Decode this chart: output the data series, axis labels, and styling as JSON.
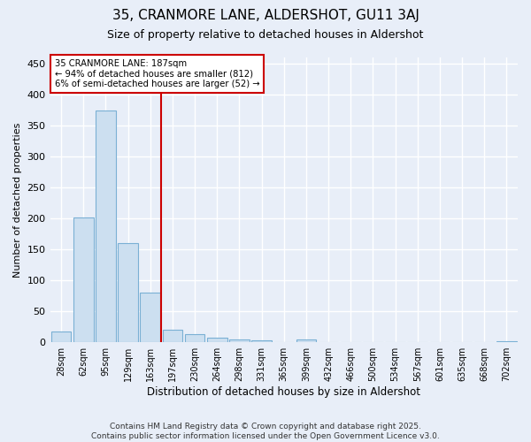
{
  "title": "35, CRANMORE LANE, ALDERSHOT, GU11 3AJ",
  "subtitle": "Size of property relative to detached houses in Aldershot",
  "xlabel": "Distribution of detached houses by size in Aldershot",
  "ylabel": "Number of detached properties",
  "categories": [
    "28sqm",
    "62sqm",
    "95sqm",
    "129sqm",
    "163sqm",
    "197sqm",
    "230sqm",
    "264sqm",
    "298sqm",
    "331sqm",
    "365sqm",
    "399sqm",
    "432sqm",
    "466sqm",
    "500sqm",
    "534sqm",
    "567sqm",
    "601sqm",
    "635sqm",
    "668sqm",
    "702sqm"
  ],
  "values": [
    17,
    202,
    375,
    160,
    80,
    20,
    13,
    7,
    5,
    3,
    0,
    4,
    0,
    0,
    0,
    0,
    0,
    0,
    0,
    0,
    2
  ],
  "bar_color": "#ccdff0",
  "bar_edge_color": "#7ab0d4",
  "annotation_text_line1": "35 CRANMORE LANE: 187sqm",
  "annotation_text_line2": "← 94% of detached houses are smaller (812)",
  "annotation_text_line3": "6% of semi-detached houses are larger (52) →",
  "annotation_box_color": "#ffffff",
  "annotation_box_edge_color": "#cc0000",
  "vline_color": "#cc0000",
  "vline_x": 4.5,
  "ylim": [
    0,
    460
  ],
  "yticks": [
    0,
    50,
    100,
    150,
    200,
    250,
    300,
    350,
    400,
    450
  ],
  "background_color": "#e8eef8",
  "plot_bg_color": "#e8eef8",
  "grid_color": "#ffffff",
  "footer": "Contains HM Land Registry data © Crown copyright and database right 2025.\nContains public sector information licensed under the Open Government Licence v3.0."
}
